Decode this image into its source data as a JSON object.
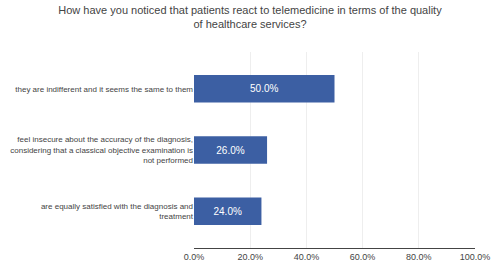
{
  "chart_data": {
    "type": "bar",
    "orientation": "horizontal",
    "title": "How have you noticed that patients react to telemedicine in terms of the quality\nof healthcare services?",
    "categories": [
      "are equally satisfied with the diagnosis and\ntreatment",
      "feel insecure about the accuracy of the diagnosis,\nconsidering that a classical objective examination is\nnot performed",
      "they are indifferent and it seems the same to them"
    ],
    "values": [
      24.0,
      26.0,
      50.0
    ],
    "value_labels": [
      "24.0%",
      "26.0%",
      "50.0%"
    ],
    "data_labels": true,
    "color": "#3C5FA3",
    "xlim": [
      0,
      100
    ],
    "xticks": [
      {
        "value": 0,
        "label": "0.0%"
      },
      {
        "value": 20,
        "label": "20.0%"
      },
      {
        "value": 40,
        "label": "40.0%"
      },
      {
        "value": 60,
        "label": "60.0%"
      },
      {
        "value": 80,
        "label": "80.0%"
      },
      {
        "value": 100,
        "label": "100.0%"
      }
    ],
    "grid": true
  }
}
